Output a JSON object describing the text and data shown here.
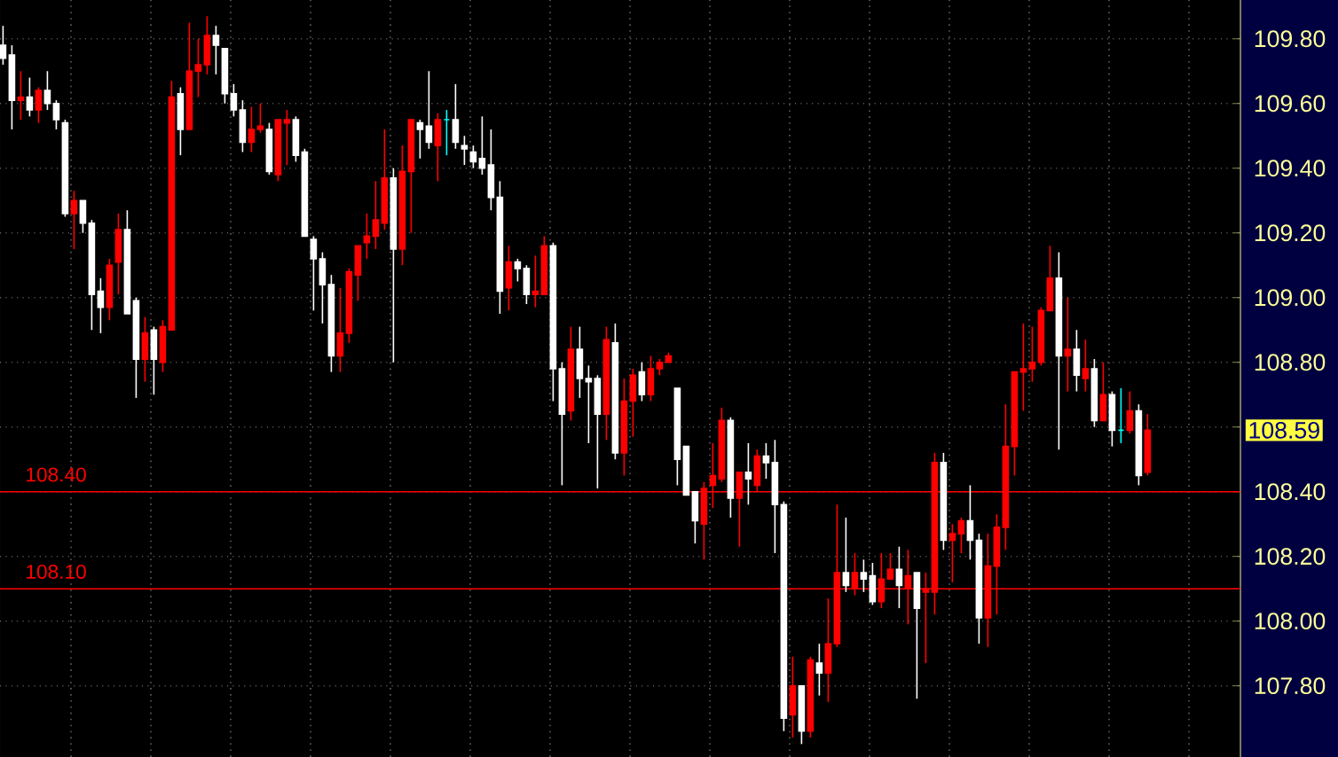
{
  "chart_data": {
    "type": "candlestick",
    "categories": [
      null,
      null,
      null,
      null,
      null,
      null,
      null,
      null,
      null,
      null,
      null,
      null,
      null,
      null,
      null,
      null,
      null,
      null,
      null,
      null,
      null,
      null,
      null,
      null,
      null,
      null,
      null,
      null,
      null,
      null,
      null,
      null,
      null,
      null,
      null,
      null,
      null,
      null,
      null,
      null,
      null,
      null,
      null,
      null,
      null,
      null,
      null,
      null,
      null,
      null,
      null,
      null,
      null,
      null,
      null,
      null,
      null,
      null,
      null,
      null,
      null,
      null,
      null,
      null,
      null,
      null,
      null,
      null,
      null,
      null,
      null,
      null,
      null,
      null,
      null,
      null,
      null,
      null,
      null,
      null,
      null,
      null,
      null,
      null,
      null,
      null,
      null,
      null,
      null,
      null,
      null,
      null,
      null,
      null,
      null,
      null,
      null,
      null,
      null,
      null,
      null,
      null,
      null,
      null,
      null,
      null,
      null,
      null,
      null,
      null,
      null,
      null,
      null,
      null,
      null,
      null,
      null,
      null,
      null,
      null,
      null,
      null,
      null,
      null,
      null,
      null,
      null,
      null,
      null,
      null
    ],
    "ohlc": [
      [
        109.78,
        109.84,
        109.72,
        109.74
      ],
      [
        109.75,
        109.78,
        109.52,
        109.61
      ],
      [
        109.61,
        109.7,
        109.55,
        109.62
      ],
      [
        109.62,
        109.68,
        109.56,
        109.58
      ],
      [
        109.58,
        109.65,
        109.54,
        109.64
      ],
      [
        109.64,
        109.7,
        109.58,
        109.6
      ],
      [
        109.6,
        109.61,
        109.52,
        109.55
      ],
      [
        109.54,
        109.55,
        109.25,
        109.26
      ],
      [
        109.26,
        109.33,
        109.15,
        109.3
      ],
      [
        109.3,
        109.3,
        109.2,
        109.23
      ],
      [
        109.23,
        109.24,
        108.9,
        109.01
      ],
      [
        109.02,
        109.06,
        108.89,
        108.97
      ],
      [
        108.97,
        109.12,
        108.93,
        109.1
      ],
      [
        109.11,
        109.26,
        109.01,
        109.21
      ],
      [
        109.21,
        109.27,
        108.95,
        108.95
      ],
      [
        108.99,
        109.0,
        108.69,
        108.81
      ],
      [
        108.81,
        108.94,
        108.74,
        108.89
      ],
      [
        108.9,
        108.91,
        108.7,
        108.81
      ],
      [
        108.8,
        108.93,
        108.77,
        108.91
      ],
      [
        108.9,
        109.67,
        108.9,
        109.62
      ],
      [
        109.63,
        109.65,
        109.44,
        109.52
      ],
      [
        109.52,
        109.85,
        109.52,
        109.7
      ],
      [
        109.7,
        109.8,
        109.62,
        109.72
      ],
      [
        109.72,
        109.87,
        109.69,
        109.81
      ],
      [
        109.81,
        109.84,
        109.69,
        109.78
      ],
      [
        109.77,
        109.77,
        109.6,
        109.63
      ],
      [
        109.63,
        109.66,
        109.56,
        109.58
      ],
      [
        109.58,
        109.61,
        109.45,
        109.48
      ],
      [
        109.48,
        109.59,
        109.45,
        109.52
      ],
      [
        109.52,
        109.6,
        109.51,
        109.53
      ],
      [
        109.52,
        109.54,
        109.38,
        109.39
      ],
      [
        109.38,
        109.55,
        109.36,
        109.55
      ],
      [
        109.54,
        109.58,
        109.41,
        109.55
      ],
      [
        109.55,
        109.56,
        109.42,
        109.44
      ],
      [
        109.45,
        109.46,
        109.19,
        109.19
      ],
      [
        109.18,
        109.19,
        108.96,
        109.12
      ],
      [
        109.12,
        109.14,
        108.92,
        109.04
      ],
      [
        109.04,
        109.07,
        108.77,
        108.82
      ],
      [
        108.82,
        109.03,
        108.77,
        108.89
      ],
      [
        108.89,
        109.09,
        108.86,
        109.08
      ],
      [
        109.07,
        109.16,
        108.99,
        109.16
      ],
      [
        109.17,
        109.26,
        109.12,
        109.19
      ],
      [
        109.19,
        109.36,
        109.15,
        109.24
      ],
      [
        109.23,
        109.52,
        109.21,
        109.37
      ],
      [
        109.37,
        109.4,
        108.8,
        109.15
      ],
      [
        109.15,
        109.47,
        109.1,
        109.39
      ],
      [
        109.39,
        109.55,
        109.2,
        109.55
      ],
      [
        109.54,
        109.55,
        109.43,
        109.52
      ],
      [
        109.53,
        109.7,
        109.46,
        109.48
      ],
      [
        109.47,
        109.57,
        109.36,
        109.55
      ],
      [
        109.55,
        109.58,
        109.44,
        109.55
      ],
      [
        109.55,
        109.66,
        109.46,
        109.48
      ],
      [
        109.47,
        109.5,
        109.41,
        109.46
      ],
      [
        109.45,
        109.47,
        109.4,
        109.42
      ],
      [
        109.43,
        109.56,
        109.38,
        109.4
      ],
      [
        109.41,
        109.52,
        109.27,
        109.31
      ],
      [
        109.31,
        109.36,
        108.95,
        109.02
      ],
      [
        109.03,
        109.16,
        108.96,
        109.11
      ],
      [
        109.11,
        109.12,
        109.05,
        109.09
      ],
      [
        109.09,
        109.1,
        108.98,
        109.01
      ],
      [
        109.01,
        109.13,
        108.97,
        109.02
      ],
      [
        109.01,
        109.19,
        109.01,
        109.16
      ],
      [
        109.16,
        109.17,
        108.68,
        108.78
      ],
      [
        108.78,
        108.8,
        108.42,
        108.64
      ],
      [
        108.65,
        108.91,
        108.62,
        108.84
      ],
      [
        108.84,
        108.91,
        108.69,
        108.75
      ],
      [
        108.75,
        108.79,
        108.55,
        108.74
      ],
      [
        108.75,
        108.76,
        108.41,
        108.64
      ],
      [
        108.64,
        108.91,
        108.56,
        108.87
      ],
      [
        108.86,
        108.92,
        108.5,
        108.52
      ],
      [
        108.52,
        108.75,
        108.45,
        108.68
      ],
      [
        108.68,
        108.78,
        108.57,
        108.76
      ],
      [
        108.77,
        108.8,
        108.68,
        108.7
      ],
      [
        108.7,
        108.82,
        108.68,
        108.78
      ],
      [
        108.78,
        108.81,
        108.76,
        108.8
      ],
      [
        108.8,
        108.83,
        108.8,
        108.82
      ],
      [
        108.72,
        108.72,
        108.42,
        108.5
      ],
      [
        108.54,
        108.54,
        108.39,
        108.39
      ],
      [
        108.4,
        108.4,
        108.24,
        108.31
      ],
      [
        108.3,
        108.43,
        108.19,
        108.41
      ],
      [
        108.42,
        108.55,
        108.35,
        108.45
      ],
      [
        108.44,
        108.66,
        108.43,
        108.62
      ],
      [
        108.62,
        108.63,
        108.32,
        108.38
      ],
      [
        108.38,
        108.46,
        108.23,
        108.46
      ],
      [
        108.46,
        108.55,
        108.36,
        108.44
      ],
      [
        108.42,
        108.53,
        108.4,
        108.51
      ],
      [
        108.51,
        108.55,
        108.44,
        108.49
      ],
      [
        108.49,
        108.56,
        108.21,
        108.36
      ],
      [
        108.36,
        108.37,
        107.66,
        107.7
      ],
      [
        107.71,
        107.89,
        107.64,
        107.8
      ],
      [
        107.8,
        107.8,
        107.62,
        107.66
      ],
      [
        107.66,
        107.89,
        107.64,
        107.88
      ],
      [
        107.87,
        107.93,
        107.77,
        107.84
      ],
      [
        107.84,
        108.07,
        107.75,
        107.93
      ],
      [
        107.93,
        108.36,
        107.92,
        108.15
      ],
      [
        108.15,
        108.32,
        108.09,
        108.11
      ],
      [
        108.1,
        108.21,
        108.08,
        108.15
      ],
      [
        108.15,
        108.19,
        108.09,
        108.13
      ],
      [
        108.14,
        108.18,
        108.05,
        108.06
      ],
      [
        108.06,
        108.21,
        108.04,
        108.13
      ],
      [
        108.13,
        108.21,
        108.13,
        108.16
      ],
      [
        108.16,
        108.23,
        108.04,
        108.11
      ],
      [
        108.1,
        108.22,
        107.99,
        108.14
      ],
      [
        108.15,
        108.15,
        107.76,
        108.04
      ],
      [
        108.09,
        108.15,
        107.87,
        108.1
      ],
      [
        108.09,
        108.52,
        108.02,
        108.49
      ],
      [
        108.49,
        108.52,
        108.22,
        108.25
      ],
      [
        108.25,
        108.3,
        108.12,
        108.27
      ],
      [
        108.27,
        108.32,
        108.21,
        108.31
      ],
      [
        108.31,
        108.42,
        108.19,
        108.25
      ],
      [
        108.25,
        108.27,
        107.93,
        108.01
      ],
      [
        108.01,
        108.27,
        107.92,
        108.17
      ],
      [
        108.17,
        108.33,
        108.02,
        108.29
      ],
      [
        108.29,
        108.67,
        108.22,
        108.54
      ],
      [
        108.54,
        108.77,
        108.45,
        108.77
      ],
      [
        108.77,
        108.92,
        108.65,
        108.78
      ],
      [
        108.78,
        108.91,
        108.74,
        108.8
      ],
      [
        108.8,
        108.97,
        108.79,
        108.96
      ],
      [
        108.96,
        109.16,
        108.96,
        109.06
      ],
      [
        109.06,
        109.14,
        108.53,
        108.82
      ],
      [
        108.82,
        109.0,
        108.71,
        108.84
      ],
      [
        108.84,
        108.9,
        108.71,
        108.76
      ],
      [
        108.75,
        108.87,
        108.71,
        108.78
      ],
      [
        108.78,
        108.81,
        108.6,
        108.62
      ],
      [
        108.62,
        108.8,
        108.62,
        108.7
      ],
      [
        108.7,
        108.71,
        108.54,
        108.59
      ],
      [
        108.59,
        108.72,
        108.55,
        108.59
      ],
      [
        108.59,
        108.71,
        108.58,
        108.65
      ],
      [
        108.65,
        108.67,
        108.42,
        108.45
      ],
      [
        108.46,
        108.64,
        108.45,
        108.59
      ]
    ],
    "colors": [
      "#ffffff",
      "#ffffff",
      "#ff0000",
      "#ffffff",
      "#ff0000",
      "#ffffff",
      "#ffffff",
      "#ffffff",
      "#ff0000",
      "#ffffff",
      "#ffffff",
      "#ffffff",
      "#ff0000",
      "#ff0000",
      "#ffffff",
      "#ffffff",
      "#ff0000",
      "#ffffff",
      "#ff0000",
      "#ff0000",
      "#ffffff",
      "#ff0000",
      "#ff0000",
      "#ff0000",
      "#ffffff",
      "#ffffff",
      "#ffffff",
      "#ffffff",
      "#ff0000",
      "#ff0000",
      "#ffffff",
      "#ff0000",
      "#ff0000",
      "#ffffff",
      "#ffffff",
      "#ffffff",
      "#ffffff",
      "#ffffff",
      "#ff0000",
      "#ff0000",
      "#ff0000",
      "#ff0000",
      "#ff0000",
      "#ff0000",
      "#ffffff",
      "#ff0000",
      "#ff0000",
      "#ffffff",
      "#ffffff",
      "#ff0000",
      "#00ffff",
      "#ffffff",
      "#ffffff",
      "#ffffff",
      "#ffffff",
      "#ffffff",
      "#ffffff",
      "#ff0000",
      "#ffffff",
      "#ffffff",
      "#ff0000",
      "#ff0000",
      "#ffffff",
      "#ffffff",
      "#ff0000",
      "#ffffff",
      "#ffffff",
      "#ffffff",
      "#ff0000",
      "#ffffff",
      "#ff0000",
      "#ff0000",
      "#ffffff",
      "#ff0000",
      "#ff0000",
      "#ff0000",
      "#ffffff",
      "#ffffff",
      "#ffffff",
      "#ff0000",
      "#ff0000",
      "#ff0000",
      "#ffffff",
      "#ff0000",
      "#ffffff",
      "#ff0000",
      "#ffffff",
      "#ffffff",
      "#ffffff",
      "#ff0000",
      "#ffffff",
      "#ff0000",
      "#ffffff",
      "#ff0000",
      "#ff0000",
      "#ffffff",
      "#ff0000",
      "#ffffff",
      "#ffffff",
      "#ff0000",
      "#ff0000",
      "#ffffff",
      "#ff0000",
      "#ffffff",
      "#ff0000",
      "#ff0000",
      "#ffffff",
      "#ff0000",
      "#ff0000",
      "#ffffff",
      "#ffffff",
      "#ff0000",
      "#ff0000",
      "#ff0000",
      "#ff0000",
      "#ff0000",
      "#ff0000",
      "#ff0000",
      "#ff0000",
      "#ffffff",
      "#ff0000",
      "#ffffff",
      "#ff0000",
      "#ffffff",
      "#ff0000",
      "#ffffff",
      "#00ffff",
      "#ff0000",
      "#ffffff",
      "#ff0000"
    ],
    "ylim": [
      107.58,
      109.92
    ],
    "yticks": [
      {
        "value": 107.8,
        "label": "107.80"
      },
      {
        "value": 108.0,
        "label": "108.00"
      },
      {
        "value": 108.2,
        "label": "108.20"
      },
      {
        "value": 108.4,
        "label": "108.40"
      },
      {
        "value": 108.6,
        "label": null
      },
      {
        "value": 108.8,
        "label": "108.80"
      },
      {
        "value": 109.0,
        "label": "109.00"
      },
      {
        "value": 109.2,
        "label": "109.20"
      },
      {
        "value": 109.4,
        "label": "109.40"
      },
      {
        "value": 109.6,
        "label": "109.60"
      },
      {
        "value": 109.8,
        "label": "109.80"
      }
    ],
    "grid": true,
    "ref_lines": [
      {
        "axis": "y",
        "value": 108.4,
        "label": "108.40",
        "color": "#ff0000"
      },
      {
        "axis": "y",
        "value": 108.1,
        "label": "108.10",
        "color": "#ff0000"
      }
    ],
    "annotations": [
      "108.59"
    ]
  }
}
